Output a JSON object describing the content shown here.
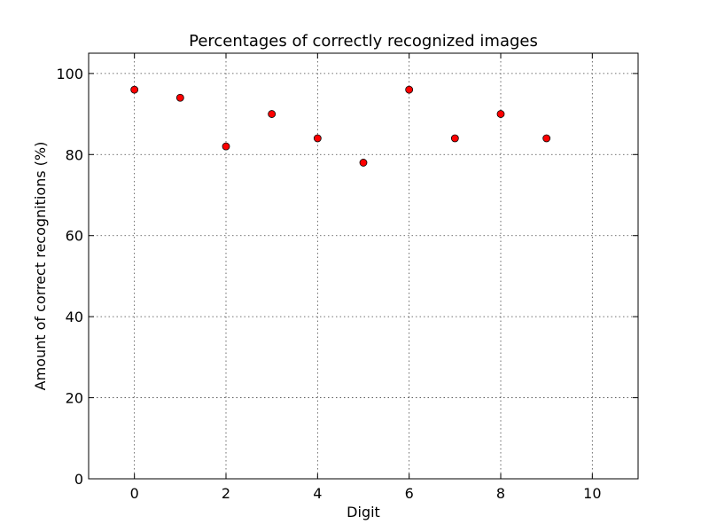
{
  "chart_data": {
    "type": "scatter",
    "title": "Percentages of correctly recognized images",
    "xlabel": "Digit",
    "ylabel": "Amount of correct recognitions (%)",
    "xlim": [
      -1,
      11
    ],
    "ylim": [
      0,
      105
    ],
    "xticks": [
      0,
      2,
      4,
      6,
      8,
      10
    ],
    "yticks": [
      0,
      20,
      40,
      60,
      80,
      100
    ],
    "grid": true,
    "point_color": "#ff0000",
    "points": [
      {
        "x": 0,
        "y": 96
      },
      {
        "x": 1,
        "y": 94
      },
      {
        "x": 2,
        "y": 82
      },
      {
        "x": 3,
        "y": 90
      },
      {
        "x": 4,
        "y": 84
      },
      {
        "x": 5,
        "y": 78
      },
      {
        "x": 6,
        "y": 96
      },
      {
        "x": 7,
        "y": 84
      },
      {
        "x": 8,
        "y": 90
      },
      {
        "x": 9,
        "y": 84
      }
    ]
  }
}
